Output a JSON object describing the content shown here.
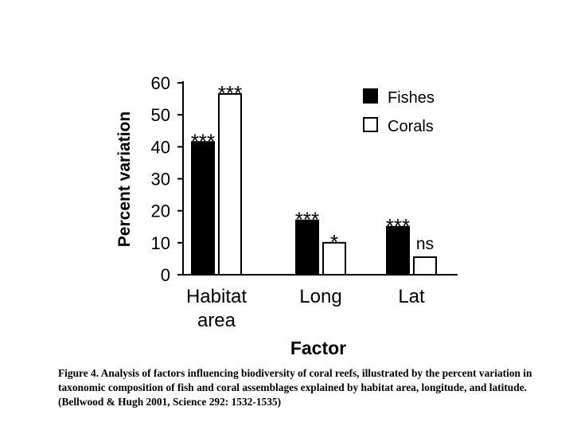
{
  "chart_data": {
    "type": "bar",
    "categories": [
      [
        "Habitat",
        "area"
      ],
      [
        "Long"
      ],
      [
        "Lat"
      ]
    ],
    "series": [
      {
        "name": "Fishes",
        "values": [
          41.5,
          17,
          15
        ],
        "fill": "#000000",
        "significance": [
          "***",
          "***",
          "***"
        ]
      },
      {
        "name": "Corals",
        "values": [
          56.5,
          10,
          5.5
        ],
        "fill": "#ffffff",
        "significance": [
          "***",
          "*",
          "ns"
        ]
      }
    ],
    "xlabel": "Factor",
    "ylabel": "Percent variation",
    "ylim": [
      0,
      60
    ],
    "yticks": [
      0,
      10,
      20,
      30,
      40,
      50,
      60
    ],
    "grid": false,
    "legend_position": "top-right"
  },
  "caption": "Figure 4. Analysis of factors influencing biodiversity of coral reefs, illustrated by the percent variation in taxonomic composition of fish and coral assemblages explained by habitat area, longitude, and latitude.  (Bellwood & Hugh 2001, Science 292: 1532-1535)"
}
